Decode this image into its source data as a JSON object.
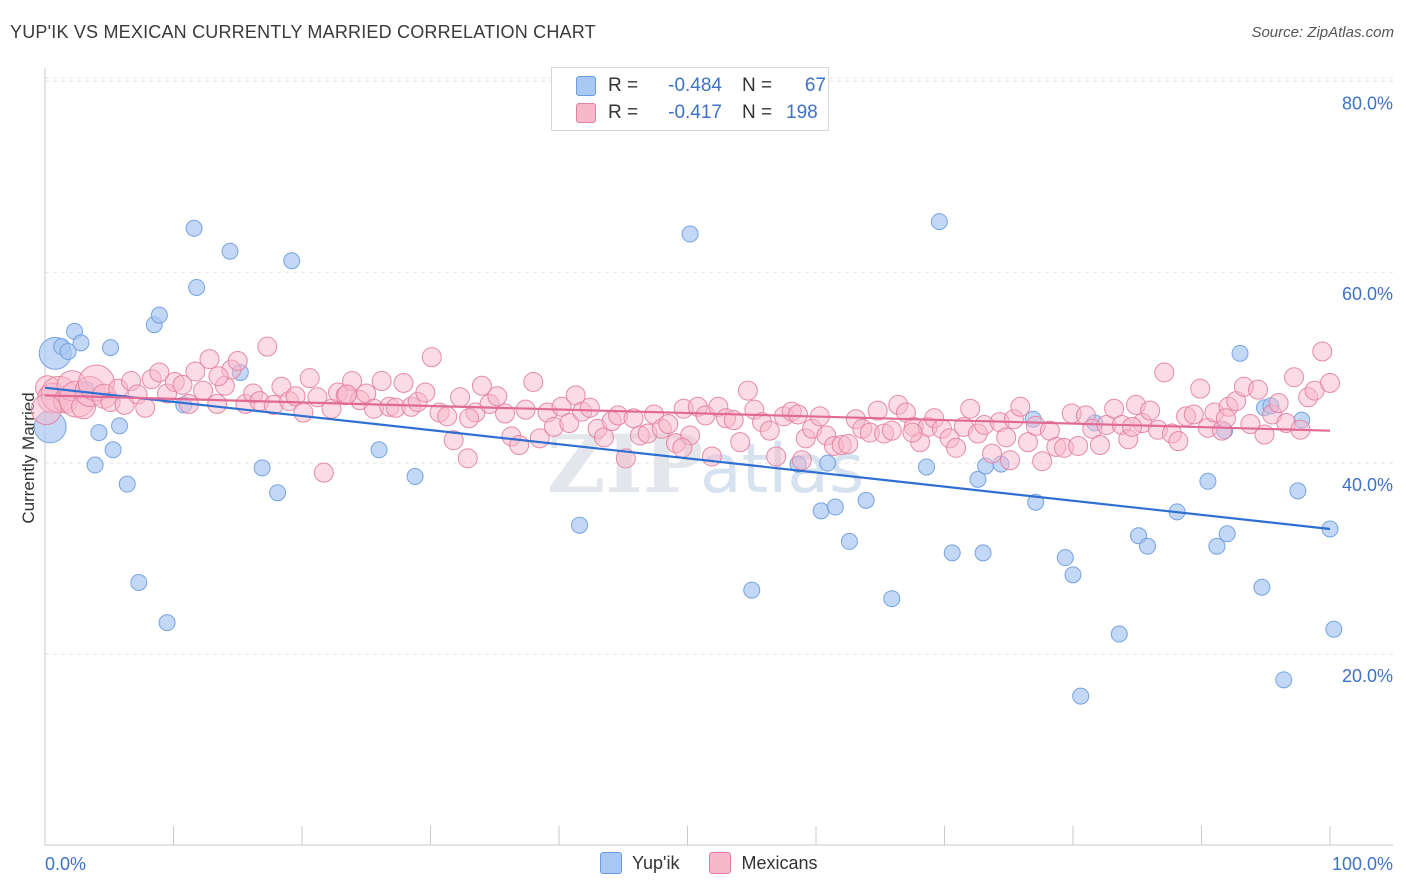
{
  "title": "YUP'IK VS MEXICAN CURRENTLY MARRIED CORRELATION CHART",
  "source": "Source: ZipAtlas.com",
  "watermark": "ZIPatlas",
  "legend_top": [
    {
      "r_label": "R =",
      "r_value": "-0.484",
      "n_label": "N =",
      "n_value": "67",
      "color": "#a9c8f2",
      "border": "#6a9be0"
    },
    {
      "r_label": "R =",
      "r_value": "-0.417",
      "n_label": "N =",
      "n_value": "198",
      "color": "#f7b8cb",
      "border": "#e37f9f"
    }
  ],
  "legend_bottom": [
    {
      "label": "Yup'ik",
      "color": "#a9c8f2",
      "border": "#6a9be0"
    },
    {
      "label": "Mexicans",
      "color": "#f7b8cb",
      "border": "#e37f9f"
    }
  ],
  "chart_data": {
    "type": "scatter",
    "ylabel": "Currently Married",
    "xlabel": "",
    "xlim": [
      0,
      100
    ],
    "ylim": [
      0,
      82
    ],
    "x_ticks": [
      "0.0%",
      "100.0%"
    ],
    "y_ticks": [
      {
        "value": 20,
        "label": "20.0%"
      },
      {
        "value": 40,
        "label": "40.0%"
      },
      {
        "value": 60,
        "label": "60.0%"
      },
      {
        "value": 80,
        "label": "80.0%"
      }
    ],
    "grid": true,
    "series": [
      {
        "name": "Yup'ik",
        "color": "#a9c8f2",
        "stroke": "#6a9be0",
        "trend": {
          "x": [
            0,
            100
          ],
          "y": [
            47.9,
            33.1
          ],
          "color": "#2e6fd1"
        },
        "points": [
          [
            0.4,
            43.8
          ],
          [
            0.8,
            51.5
          ],
          [
            1.3,
            52.2
          ],
          [
            1.8,
            51.7
          ],
          [
            2.3,
            53.8
          ],
          [
            2.8,
            52.6
          ],
          [
            3.2,
            47.7
          ],
          [
            3.9,
            39.8
          ],
          [
            4.2,
            43.2
          ],
          [
            5.1,
            52.1
          ],
          [
            5.3,
            41.4
          ],
          [
            5.8,
            43.9
          ],
          [
            6.4,
            37.8
          ],
          [
            7.3,
            27.5
          ],
          [
            8.5,
            54.5
          ],
          [
            8.9,
            55.5
          ],
          [
            9.5,
            23.3
          ],
          [
            10.8,
            46.1
          ],
          [
            11.6,
            64.6
          ],
          [
            11.8,
            58.4
          ],
          [
            14.4,
            62.2
          ],
          [
            15.2,
            49.5
          ],
          [
            16.9,
            39.5
          ],
          [
            18.1,
            36.9
          ],
          [
            19.2,
            61.2
          ],
          [
            26.0,
            41.4
          ],
          [
            28.8,
            38.6
          ],
          [
            41.6,
            33.5
          ],
          [
            50.2,
            64.0
          ],
          [
            55.0,
            26.7
          ],
          [
            58.6,
            39.9
          ],
          [
            60.4,
            35.0
          ],
          [
            60.9,
            40.0
          ],
          [
            61.5,
            35.4
          ],
          [
            62.6,
            31.8
          ],
          [
            63.9,
            36.1
          ],
          [
            65.9,
            25.8
          ],
          [
            68.6,
            39.6
          ],
          [
            69.6,
            65.3
          ],
          [
            70.6,
            30.6
          ],
          [
            72.6,
            38.3
          ],
          [
            73.0,
            30.6
          ],
          [
            73.2,
            39.7
          ],
          [
            74.4,
            39.9
          ],
          [
            76.9,
            44.6
          ],
          [
            77.1,
            35.9
          ],
          [
            79.4,
            30.1
          ],
          [
            80.0,
            28.3
          ],
          [
            80.6,
            15.6
          ],
          [
            81.7,
            44.2
          ],
          [
            83.6,
            22.1
          ],
          [
            85.1,
            32.4
          ],
          [
            85.8,
            31.3
          ],
          [
            88.1,
            34.9
          ],
          [
            90.5,
            38.1
          ],
          [
            91.2,
            31.3
          ],
          [
            91.8,
            43.4
          ],
          [
            92.0,
            32.6
          ],
          [
            93.0,
            51.5
          ],
          [
            94.7,
            27.0
          ],
          [
            94.9,
            45.8
          ],
          [
            95.4,
            46.0
          ],
          [
            96.4,
            17.3
          ],
          [
            97.5,
            37.1
          ],
          [
            97.8,
            44.5
          ],
          [
            100.0,
            33.1
          ],
          [
            100.3,
            22.6
          ]
        ]
      },
      {
        "name": "Mexicans",
        "color": "#f7b8cb",
        "stroke": "#e37f9f",
        "trend": {
          "x": [
            0,
            100
          ],
          "y": [
            47.1,
            43.4
          ],
          "color": "#e06a94"
        },
        "points": [
          [
            0.2,
            47.9
          ],
          [
            0.6,
            46.8
          ],
          [
            1.1,
            47.2
          ],
          [
            1.6,
            46.5
          ],
          [
            2.1,
            48.1
          ],
          [
            2.5,
            46.7
          ],
          [
            3.0,
            45.9
          ],
          [
            3.5,
            47.5
          ],
          [
            4.0,
            48.4
          ],
          [
            4.6,
            47.0
          ],
          [
            5.1,
            46.4
          ],
          [
            5.7,
            47.8
          ],
          [
            6.2,
            46.1
          ],
          [
            6.7,
            48.6
          ],
          [
            7.2,
            47.2
          ],
          [
            7.8,
            45.8
          ],
          [
            8.3,
            48.8
          ],
          [
            8.9,
            49.5
          ],
          [
            9.5,
            47.3
          ],
          [
            10.1,
            48.5
          ],
          [
            10.7,
            48.2
          ],
          [
            11.2,
            46.2
          ],
          [
            11.7,
            49.6
          ],
          [
            12.3,
            47.6
          ],
          [
            12.8,
            50.9
          ],
          [
            13.4,
            46.2
          ],
          [
            14.0,
            48.1
          ],
          [
            14.5,
            49.8
          ],
          [
            15.0,
            50.7
          ],
          [
            15.6,
            46.2
          ],
          [
            16.2,
            47.3
          ],
          [
            16.7,
            46.5
          ],
          [
            17.3,
            52.2
          ],
          [
            17.8,
            46.1
          ],
          [
            18.4,
            48.0
          ],
          [
            19.0,
            46.5
          ],
          [
            19.5,
            47.0
          ],
          [
            20.1,
            45.3
          ],
          [
            20.6,
            48.9
          ],
          [
            21.2,
            46.9
          ],
          [
            21.7,
            39.0
          ],
          [
            22.3,
            45.7
          ],
          [
            22.8,
            47.4
          ],
          [
            23.4,
            47.1
          ],
          [
            23.9,
            48.6
          ],
          [
            24.5,
            46.6
          ],
          [
            25.0,
            47.3
          ],
          [
            25.6,
            45.7
          ],
          [
            26.2,
            48.6
          ],
          [
            26.8,
            45.9
          ],
          [
            27.3,
            45.8
          ],
          [
            27.9,
            48.4
          ],
          [
            28.5,
            45.9
          ],
          [
            29.0,
            46.4
          ],
          [
            29.6,
            47.4
          ],
          [
            30.1,
            51.1
          ],
          [
            30.7,
            45.3
          ],
          [
            31.3,
            44.9
          ],
          [
            31.8,
            42.4
          ],
          [
            32.3,
            46.9
          ],
          [
            32.9,
            40.5
          ],
          [
            33.5,
            45.3
          ],
          [
            34.0,
            48.1
          ],
          [
            34.6,
            46.2
          ],
          [
            35.2,
            47.0
          ],
          [
            35.8,
            45.2
          ],
          [
            36.3,
            42.8
          ],
          [
            36.9,
            41.9
          ],
          [
            37.4,
            45.6
          ],
          [
            38.0,
            48.5
          ],
          [
            38.5,
            42.6
          ],
          [
            39.1,
            45.3
          ],
          [
            39.6,
            43.8
          ],
          [
            40.2,
            45.9
          ],
          [
            40.8,
            44.2
          ],
          [
            41.3,
            47.1
          ],
          [
            41.8,
            45.4
          ],
          [
            42.4,
            45.8
          ],
          [
            43.0,
            43.6
          ],
          [
            43.5,
            42.7
          ],
          [
            44.1,
            44.4
          ],
          [
            44.6,
            45.0
          ],
          [
            45.2,
            40.5
          ],
          [
            45.8,
            44.7
          ],
          [
            46.3,
            42.9
          ],
          [
            46.9,
            43.1
          ],
          [
            47.4,
            45.1
          ],
          [
            48.0,
            43.6
          ],
          [
            48.5,
            44.1
          ],
          [
            49.1,
            42.1
          ],
          [
            49.7,
            45.7
          ],
          [
            50.2,
            42.9
          ],
          [
            50.8,
            45.9
          ],
          [
            51.4,
            45.0
          ],
          [
            51.9,
            40.7
          ],
          [
            52.4,
            45.9
          ],
          [
            53.0,
            44.7
          ],
          [
            53.6,
            44.5
          ],
          [
            54.1,
            42.2
          ],
          [
            54.7,
            47.6
          ],
          [
            55.2,
            45.6
          ],
          [
            55.8,
            44.3
          ],
          [
            56.4,
            43.4
          ],
          [
            56.9,
            40.7
          ],
          [
            57.5,
            44.9
          ],
          [
            58.1,
            45.4
          ],
          [
            58.6,
            45.1
          ],
          [
            59.2,
            42.6
          ],
          [
            59.7,
            43.6
          ],
          [
            60.3,
            44.9
          ],
          [
            60.8,
            42.9
          ],
          [
            61.4,
            41.8
          ],
          [
            62.0,
            41.9
          ],
          [
            62.5,
            42.0
          ],
          [
            63.1,
            44.6
          ],
          [
            63.6,
            43.6
          ],
          [
            64.2,
            43.2
          ],
          [
            64.8,
            45.5
          ],
          [
            65.3,
            43.1
          ],
          [
            65.9,
            43.4
          ],
          [
            66.4,
            46.1
          ],
          [
            67.0,
            45.3
          ],
          [
            67.6,
            43.8
          ],
          [
            68.1,
            42.2
          ],
          [
            68.7,
            43.8
          ],
          [
            69.2,
            44.7
          ],
          [
            69.8,
            43.6
          ],
          [
            70.4,
            42.6
          ],
          [
            70.9,
            41.6
          ],
          [
            71.5,
            43.8
          ],
          [
            72.0,
            45.7
          ],
          [
            72.6,
            43.1
          ],
          [
            73.1,
            44.0
          ],
          [
            73.7,
            41.0
          ],
          [
            74.3,
            44.3
          ],
          [
            74.8,
            42.7
          ],
          [
            75.4,
            44.6
          ],
          [
            75.9,
            45.9
          ],
          [
            76.5,
            42.2
          ],
          [
            77.1,
            43.9
          ],
          [
            77.6,
            40.2
          ],
          [
            78.2,
            43.4
          ],
          [
            78.7,
            41.7
          ],
          [
            79.3,
            41.6
          ],
          [
            79.9,
            45.2
          ],
          [
            80.4,
            41.8
          ],
          [
            81.0,
            45.0
          ],
          [
            81.5,
            43.6
          ],
          [
            82.1,
            41.9
          ],
          [
            82.6,
            44.0
          ],
          [
            83.2,
            45.7
          ],
          [
            83.8,
            44.0
          ],
          [
            84.3,
            42.5
          ],
          [
            84.9,
            46.1
          ],
          [
            85.4,
            44.2
          ],
          [
            86.0,
            45.5
          ],
          [
            86.6,
            43.5
          ],
          [
            87.1,
            49.5
          ],
          [
            87.7,
            43.1
          ],
          [
            88.2,
            42.3
          ],
          [
            88.8,
            44.9
          ],
          [
            89.4,
            45.1
          ],
          [
            89.9,
            47.8
          ],
          [
            90.5,
            43.7
          ],
          [
            91.0,
            45.3
          ],
          [
            91.6,
            43.4
          ],
          [
            92.1,
            45.9
          ],
          [
            92.7,
            46.5
          ],
          [
            93.3,
            48.0
          ],
          [
            93.8,
            44.1
          ],
          [
            94.4,
            47.7
          ],
          [
            94.9,
            43.0
          ],
          [
            95.5,
            45.1
          ],
          [
            96.0,
            46.3
          ],
          [
            96.6,
            44.2
          ],
          [
            97.2,
            49.0
          ],
          [
            97.7,
            43.5
          ],
          [
            98.3,
            46.9
          ],
          [
            98.8,
            47.6
          ],
          [
            99.4,
            51.7
          ],
          [
            100.0,
            48.4
          ],
          [
            13.5,
            49.1
          ],
          [
            23.5,
            47.2
          ],
          [
            33.0,
            44.7
          ],
          [
            49.6,
            41.6
          ],
          [
            58.9,
            40.3
          ],
          [
            67.5,
            43.2
          ],
          [
            75.1,
            40.3
          ],
          [
            84.6,
            43.8
          ],
          [
            91.9,
            44.7
          ],
          [
            0.1,
            45.6
          ]
        ]
      }
    ]
  }
}
